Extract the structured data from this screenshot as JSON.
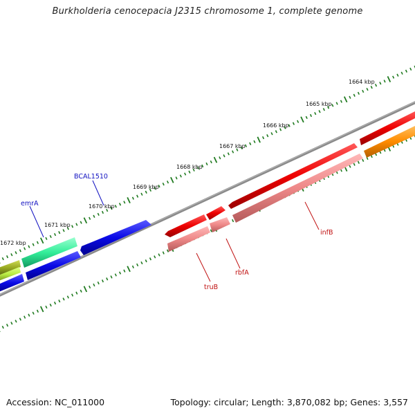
{
  "title": "Burkholderia cenocepacia J2315 chromosome 1, complete genome",
  "accession": "Accession: NC_011000",
  "topology_summary": "Topology: circular; Length: 3,870,082 bp; Genes: 3,557",
  "colors": {
    "backbone": "#808080",
    "ticks": "#1f7a1f",
    "label_forward": "#1010c0",
    "label_reverse": "#c01010",
    "blue": "#0a0ae6",
    "red": "#ee0000",
    "pink": "#ee8888",
    "green": "#33ee99",
    "orange": "#ff8c00",
    "olive": "#99aa22",
    "yellowgreen": "#bbee44"
  },
  "tick_labels": [
    "1664 kbp",
    "1665 kbp",
    "1666 kbp",
    "1667 kbp",
    "1668 kbp",
    "1669 kbp",
    "1670 kbp",
    "1671 kbp",
    "1672 kbp"
  ],
  "gene_labels": {
    "BCAL1510": "BCAL1510",
    "emrA": "emrA",
    "infB": "infB",
    "rbfA": "rbfA",
    "truB": "truB"
  }
}
